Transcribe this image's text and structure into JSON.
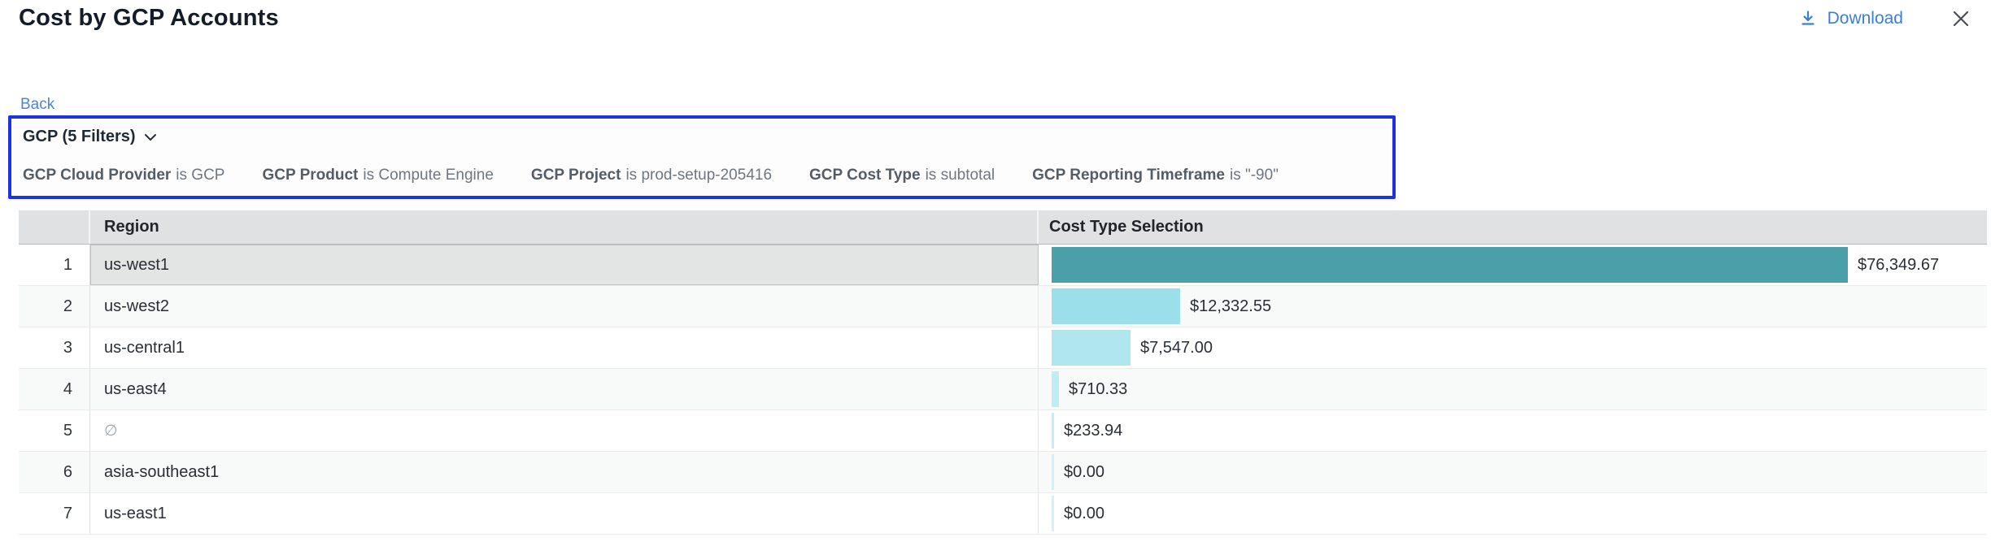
{
  "header": {
    "title": "Cost by GCP Accounts",
    "download_label": "Download"
  },
  "nav": {
    "back_label": "Back"
  },
  "filters": {
    "group_label": "GCP (5 Filters)",
    "items": [
      {
        "name": "GCP Cloud Provider",
        "condition": "is GCP"
      },
      {
        "name": "GCP Product",
        "condition": "is Compute Engine"
      },
      {
        "name": "GCP Project",
        "condition": "is prod-setup-205416"
      },
      {
        "name": "GCP Cost Type",
        "condition": "is subtotal"
      },
      {
        "name": "GCP Reporting Timeframe",
        "condition": "is \"-90\""
      }
    ]
  },
  "table": {
    "columns": [
      "Region",
      "Cost Type Selection"
    ],
    "max_value": 76349.67,
    "rows": [
      {
        "index": "1",
        "region": "us-west1",
        "empty": false,
        "value": 76349.67,
        "value_label": "$76,349.67",
        "bar_color": "#4A9FA9",
        "selected": true
      },
      {
        "index": "2",
        "region": "us-west2",
        "empty": false,
        "value": 12332.55,
        "value_label": "$12,332.55",
        "bar_color": "#9ADFE9",
        "selected": false
      },
      {
        "index": "3",
        "region": "us-central1",
        "empty": false,
        "value": 7547.0,
        "value_label": "$7,547.00",
        "bar_color": "#B0E7EF",
        "selected": false
      },
      {
        "index": "4",
        "region": "us-east4",
        "empty": false,
        "value": 710.33,
        "value_label": "$710.33",
        "bar_color": "#C0EDF4",
        "selected": false
      },
      {
        "index": "5",
        "region": "∅",
        "empty": true,
        "value": 233.94,
        "value_label": "$233.94",
        "bar_color": "#C6EFF5",
        "selected": false
      },
      {
        "index": "6",
        "region": "asia-southeast1",
        "empty": false,
        "value": 0.0,
        "value_label": "$0.00",
        "bar_color": "#CDF2F8",
        "selected": false
      },
      {
        "index": "7",
        "region": "us-east1",
        "empty": false,
        "value": 0.0,
        "value_label": "$0.00",
        "bar_color": "#CDF2F8",
        "selected": false
      }
    ]
  },
  "colors": {
    "accent_blue_border": "#1E32E4",
    "link_blue": "#3D7DD8",
    "bar_max_teal": "#4A9FA9",
    "bar_light_cyan": "#CDF2F8",
    "header_gray": "#E0E1E2",
    "selected_cell_gray": "#E3E4E4"
  },
  "chart_data": {
    "type": "bar",
    "orientation": "horizontal",
    "title": "Cost by GCP Accounts",
    "categories": [
      "us-west1",
      "us-west2",
      "us-central1",
      "us-east4",
      "∅",
      "asia-southeast1",
      "us-east1"
    ],
    "values": [
      76349.67,
      12332.55,
      7547.0,
      710.33,
      233.94,
      0.0,
      0.0
    ],
    "value_labels": [
      "$76,349.67",
      "$12,332.55",
      "$7,547.00",
      "$710.33",
      "$233.94",
      "$0.00",
      "$0.00"
    ],
    "xlabel": "Cost Type Selection",
    "ylabel": "Region",
    "xlim": [
      0,
      76349.67
    ]
  }
}
